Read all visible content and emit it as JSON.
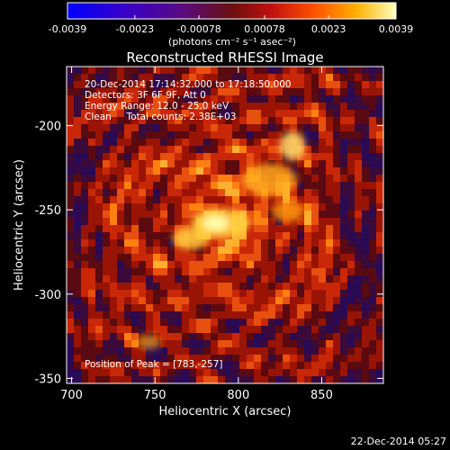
{
  "colorbar": {
    "ticks": [
      "-0.0039",
      "-0.0023",
      "-0.00078",
      "0.00078",
      "0.0023",
      "0.0039"
    ],
    "tick_values": [
      -0.0039,
      -0.0023,
      -0.00078,
      0.00078,
      0.0023,
      0.0039
    ],
    "range": [
      -0.0039,
      0.0039
    ],
    "units_label": "(photons cm⁻² s⁻¹ asec⁻²)"
  },
  "title": "Reconstructed RHESSI Image",
  "info_lines": [
    "20-Dec-2014 17:14:32.000 to 17:18:50.000",
    "Detectors: 3F 6F 9F, Att 0",
    "Energy Range: 12.0 - 25.0 keV",
    "Clean     Total counts: 2.38E+03"
  ],
  "peak_label": "Position of Peak = [783,-257]",
  "x_axis": {
    "label": "Heliocentric X (arcsec)",
    "ticks": [
      "700",
      "750",
      "800",
      "850"
    ],
    "tick_values": [
      700,
      750,
      800,
      850
    ],
    "range": [
      697,
      887
    ]
  },
  "y_axis": {
    "label": "Heliocentric Y (arcsec)",
    "ticks": [
      "-200",
      "-250",
      "-300",
      "-350"
    ],
    "tick_values": [
      -200,
      -250,
      -300,
      -350
    ],
    "range": [
      -353,
      -165
    ]
  },
  "footer_timestamp": "22-Dec-2014 05:27",
  "colors": {
    "background": "#000000",
    "foreground": "#ffffff"
  }
}
